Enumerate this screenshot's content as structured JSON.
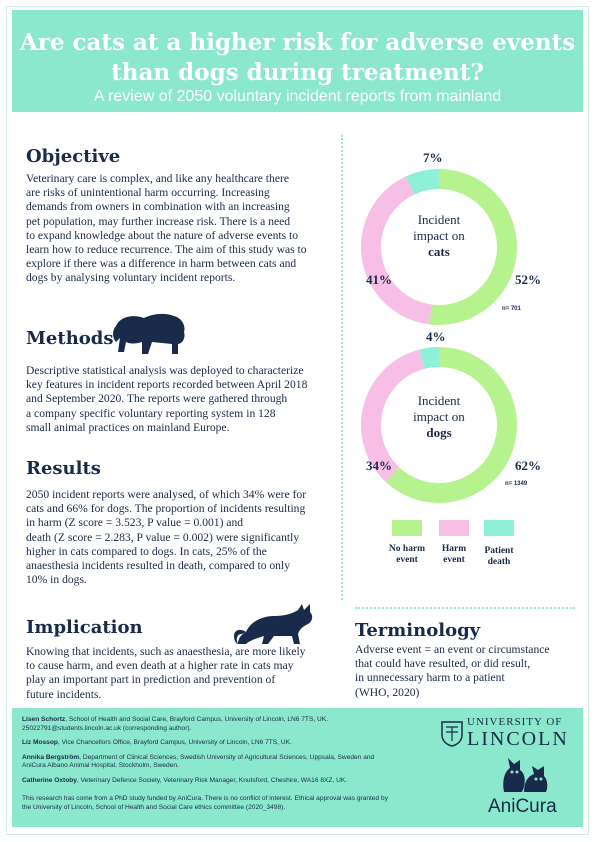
{
  "header": {
    "title_line1": "Are cats at a higher risk for adverse events",
    "title_line2": "than dogs during treatment?",
    "subtitle": "A review of 2050 voluntary incident reports from mainland"
  },
  "objective": {
    "heading": "Objective",
    "lines": [
      "Veterinary care is complex, and like any healthcare there",
      "are risks of unintentional harm occurring. Increasing",
      "demands from owners in combination with an increasing",
      "pet population, may further increase risk. There is a need",
      "to expand knowledge about the nature of adverse events to",
      "learn how to reduce recurrence. The aim of this study was to",
      "explore if there was a difference in harm between cats and",
      "dogs by analysing  voluntary incident reports."
    ]
  },
  "methods": {
    "heading": "Methods",
    "lines": [
      "Descriptive statistical analysis was deployed to characterize",
      "key features in incident reports recorded between April 2018",
      "and September 2020. The reports were gathered through",
      "a company specific voluntary reporting system in 128",
      "small animal practices on mainland Europe."
    ]
  },
  "results": {
    "heading": "Results",
    "lines": [
      "2050 incident reports were analysed, of which 34% were for",
      "cats and 66% for dogs. The proportion of incidents resulting",
      "in harm (Z score = 3.523, P value = 0.001) and",
      "death (Z score = 2.283, P value = 0.002) were significantly",
      "higher in cats compared to dogs. In cats, 25% of the",
      "anaesthesia incidents resulted in death, compared to only",
      "10% in dogs."
    ]
  },
  "implication": {
    "heading": "Implication",
    "lines": [
      "Knowing that incidents, such as anaesthesia, are more likely",
      "to cause harm, and even death at a higher rate in cats may",
      "play an important part in prediction and prevention of",
      "future incidents."
    ]
  },
  "terminology": {
    "heading": "Terminology",
    "lines": [
      "Adverse event = an event or circumstance",
      "that could have resulted, or did result,",
      "in unnecessary harm to a patient",
      "(WHO, 2020)"
    ]
  },
  "colors": {
    "accent": "#8be8cc",
    "no_harm": "#b6f28e",
    "harm": "#f7bfe6",
    "death": "#8ef0d6",
    "text": "#1a2a4a"
  },
  "chart_data": [
    {
      "type": "pie",
      "donut": true,
      "center_line1": "Incident",
      "center_line2": "impact on",
      "center_line3": "cats",
      "categories": [
        "No harm event",
        "Harm event",
        "Patient death"
      ],
      "values": [
        52,
        41,
        7
      ],
      "labels": [
        "52%",
        "41%",
        "7%"
      ],
      "n_label": "n= 701"
    },
    {
      "type": "pie",
      "donut": true,
      "center_line1": "Incident",
      "center_line2": "impact on",
      "center_line3": "dogs",
      "categories": [
        "No harm event",
        "Harm event",
        "Patient death"
      ],
      "values": [
        62,
        34,
        4
      ],
      "labels": [
        "62%",
        "34%",
        "4%"
      ],
      "n_label": "n= 1349"
    }
  ],
  "legend": [
    {
      "line1": "No harm",
      "line2": "event",
      "color": "#b6f28e"
    },
    {
      "line1": "Harm",
      "line2": "event",
      "color": "#f7bfe6"
    },
    {
      "line1": "Patient",
      "line2": "death",
      "color": "#8ef0d6"
    }
  ],
  "footer": {
    "authors": [
      {
        "name": "Lisen Schortz",
        "text": ", School of Health and Social Care, Brayford Campus, University of Lincoln, LN6 7TS, UK.",
        "text2": "25022791@students.lincoln.ac.uk (corresponding author)."
      },
      {
        "name": "Liz Mossop",
        "text": ", Vice Chancellors Office, Brayford Campus, University of Lincoln, LN6 7TS, UK.",
        "text2": ""
      },
      {
        "name": "Annika Bergström",
        "text": ", Department of Clinical Sciences, Swedish University of Agricultural Sciences, Uppsala, Sweden and",
        "text2": "AniCura Albano Animal Hospital, Stockholm, Sweden."
      },
      {
        "name": "Catherine Oxtoby",
        "text": ", Veterinary Defence Society, Veterinary Risk Manager, Knutsford, Cheshire, WA16 8XZ, UK.",
        "text2": ""
      }
    ],
    "note_line1": "This research has come from a PhD study funded by AniCura. There is no conflict of interest. Ethical approval was granted by",
    "note_line2": "the University of Lincoln, School of Health and Social Care ethics committee (2020_3498).",
    "uni_top": "UNIVERSITY OF",
    "uni_main": "LINCOLN",
    "anicura": "AniCura"
  }
}
